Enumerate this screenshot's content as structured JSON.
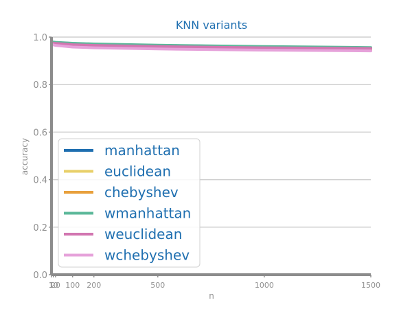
{
  "chart_data": {
    "type": "line",
    "title": "KNN variants",
    "xlabel": "n",
    "ylabel": "accuracy",
    "xlim": [
      1,
      1500
    ],
    "ylim": [
      0,
      1.0
    ],
    "xticks": [
      {
        "value": 1,
        "label": "1"
      },
      {
        "value": 10,
        "label": "10"
      },
      {
        "value": 20,
        "label": "20"
      },
      {
        "value": 100,
        "label": "100"
      },
      {
        "value": 200,
        "label": "200"
      },
      {
        "value": 500,
        "label": "500"
      },
      {
        "value": 1000,
        "label": "1000"
      },
      {
        "value": 1500,
        "label": "1500"
      }
    ],
    "yticks": [
      {
        "value": 0.0,
        "label": "0.0"
      },
      {
        "value": 0.2,
        "label": "0.2"
      },
      {
        "value": 0.4,
        "label": "0.4"
      },
      {
        "value": 0.6,
        "label": "0.6"
      },
      {
        "value": 0.8,
        "label": "0.8"
      },
      {
        "value": 1.0,
        "label": "1.0"
      }
    ],
    "grid": "horizontal",
    "legend_position": "lower-left",
    "x": [
      1,
      10,
      20,
      100,
      200,
      500,
      1000,
      1500
    ],
    "series": [
      {
        "name": "manhattan",
        "color": "#1f6fb0",
        "values": [
          0.98,
          0.978,
          0.977,
          0.973,
          0.97,
          0.965,
          0.959,
          0.955
        ]
      },
      {
        "name": "euclidean",
        "color": "#e8d06a",
        "values": [
          0.975,
          0.973,
          0.972,
          0.967,
          0.964,
          0.959,
          0.954,
          0.951
        ]
      },
      {
        "name": "chebyshev",
        "color": "#e8a03c",
        "values": [
          0.97,
          0.968,
          0.966,
          0.96,
          0.957,
          0.952,
          0.947,
          0.944
        ]
      },
      {
        "name": "wmanhattan",
        "color": "#5cb89a",
        "values": [
          0.981,
          0.979,
          0.978,
          0.974,
          0.971,
          0.966,
          0.96,
          0.956
        ]
      },
      {
        "name": "weuclidean",
        "color": "#d276b0",
        "values": [
          0.976,
          0.974,
          0.973,
          0.968,
          0.965,
          0.96,
          0.955,
          0.952
        ]
      },
      {
        "name": "wchebyshev",
        "color": "#e6a2da",
        "values": [
          0.969,
          0.967,
          0.965,
          0.958,
          0.955,
          0.95,
          0.945,
          0.942
        ]
      }
    ]
  }
}
